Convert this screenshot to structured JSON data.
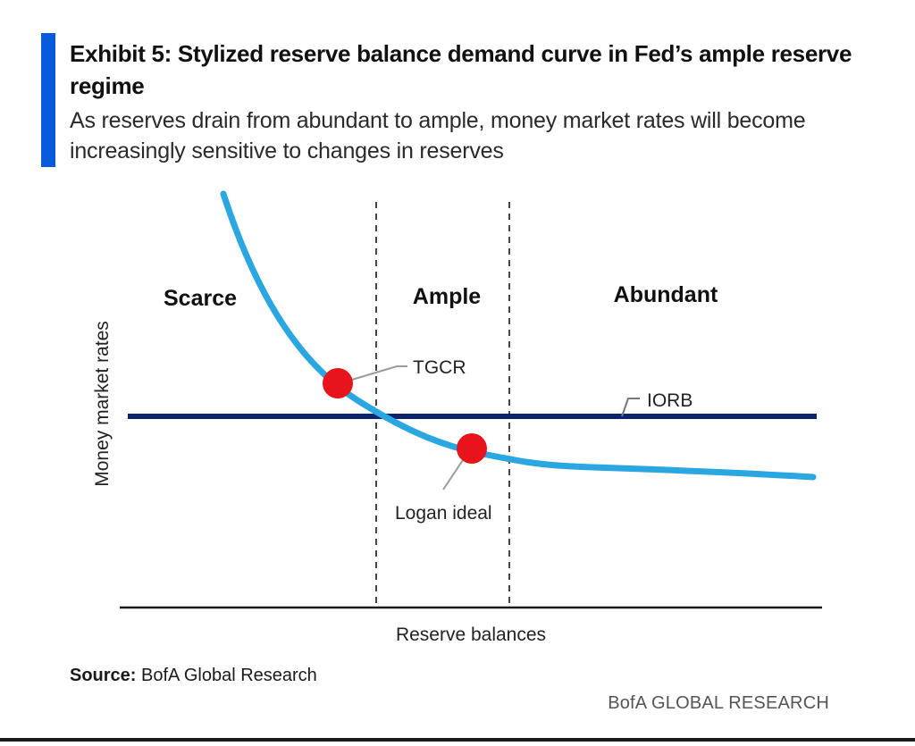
{
  "title": "Exhibit 5: Stylized reserve balance demand curve in Fed’s ample reserve regime",
  "subtitle": "As reserves drain from abundant to ample, money market rates will become increasingly sensitive to changes in reserves",
  "source_label": "Source:",
  "source_text": "BofA Global Research",
  "brand": "BofA GLOBAL RESEARCH",
  "colors": {
    "accent": "#0a5adc",
    "demand_curve": "#2aa7e0",
    "iorb_line": "#0b2470",
    "point": "#e8141b",
    "axis": "#1a1a1a",
    "divider": "#444444"
  },
  "chart_data": {
    "type": "line",
    "stylized": true,
    "xlabel": "Reserve balances",
    "ylabel": "Money market rates",
    "regions": [
      {
        "label": "Scarce"
      },
      {
        "label": "Ample"
      },
      {
        "label": "Abundant"
      }
    ],
    "series": [
      {
        "role": "demand-curve"
      },
      {
        "name": "IORB",
        "role": "horizontal-line"
      }
    ],
    "annotations": [
      {
        "label": "TGCR"
      },
      {
        "label": "Logan ideal"
      },
      {
        "label": "IORB"
      }
    ]
  }
}
